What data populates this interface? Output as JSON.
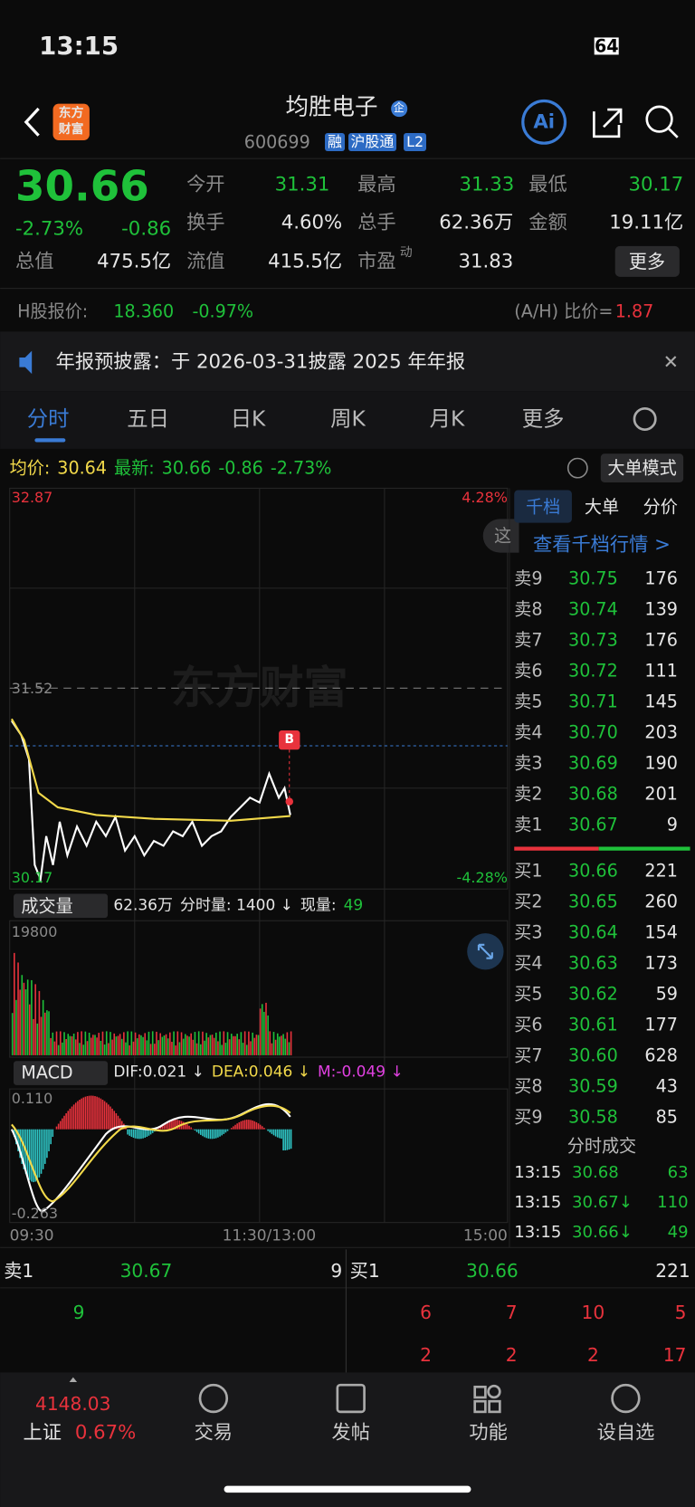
{
  "status": {
    "time": "13:15",
    "battery": "64"
  },
  "header": {
    "logo": [
      "东方",
      "财富"
    ],
    "name": "均胜电子",
    "badge": "企",
    "code": "600699",
    "tags": [
      "融",
      "沪股通",
      "L2"
    ],
    "ai": "Ai"
  },
  "quote": {
    "price": "30.66",
    "change_pct": "-2.73%",
    "change": "-0.86",
    "fields": [
      {
        "label": "今开",
        "value": "31.31"
      },
      {
        "label": "最高",
        "value": "31.33"
      },
      {
        "label": "最低",
        "value": "30.17"
      },
      {
        "label": "换手",
        "value": "4.60%"
      },
      {
        "label": "总手",
        "value": "62.36万"
      },
      {
        "label": "金额",
        "value": "19.11亿"
      },
      {
        "label": "总值",
        "value": "475.5亿"
      },
      {
        "label": "流值",
        "value": "415.5亿"
      },
      {
        "label": "市盈",
        "sup": "动",
        "value": "31.83"
      }
    ],
    "more": "更多"
  },
  "hshare": {
    "label": "H股报价:",
    "price": "18.360",
    "pct": "-0.97%",
    "ah_label": "(A/H) 比价=",
    "ah": "1.87"
  },
  "notice": "年报预披露：于 2026-03-31披露 2025 年年报",
  "tabs": [
    "分时",
    "五日",
    "日K",
    "周K",
    "月K",
    "更多"
  ],
  "info": {
    "avg_label": "均价:",
    "avg": "30.64",
    "last_label": "最新:",
    "last": "30.66",
    "change": "-0.86",
    "pct": "-2.73%",
    "mode": "大单模式"
  },
  "chart": {
    "top": "32.87",
    "top_pct": "4.28%",
    "mid": "31.52",
    "bottom": "30.17",
    "bottom_pct": "-4.28%",
    "watermark": "东方财富",
    "marker": "B",
    "hint": "这"
  },
  "volume": {
    "label": "成交量",
    "total": "62.36万",
    "period": "分时量: 1400 ↓",
    "now_label": "现量:",
    "now": "49",
    "max": "19800"
  },
  "macd": {
    "label": "MACD",
    "dif": "DIF:0.021 ↓",
    "dea": "DEA:0.046 ↓",
    "m": "M:-0.049 ↓",
    "max": "0.110",
    "min": "-0.263"
  },
  "times": [
    "09:30",
    "11:30/13:00",
    "15:00"
  ],
  "book": {
    "tabs": [
      "千档",
      "大单",
      "分价"
    ],
    "link": "查看千档行情 >",
    "sells": [
      {
        "label": "卖9",
        "price": "30.75",
        "vol": "176"
      },
      {
        "label": "卖8",
        "price": "30.74",
        "vol": "139"
      },
      {
        "label": "卖7",
        "price": "30.73",
        "vol": "176"
      },
      {
        "label": "卖6",
        "price": "30.72",
        "vol": "111"
      },
      {
        "label": "卖5",
        "price": "30.71",
        "vol": "145"
      },
      {
        "label": "卖4",
        "price": "30.70",
        "vol": "203"
      },
      {
        "label": "卖3",
        "price": "30.69",
        "vol": "190"
      },
      {
        "label": "卖2",
        "price": "30.68",
        "vol": "201"
      },
      {
        "label": "卖1",
        "price": "30.67",
        "vol": "9"
      }
    ],
    "buys": [
      {
        "label": "买1",
        "price": "30.66",
        "vol": "221"
      },
      {
        "label": "买2",
        "price": "30.65",
        "vol": "260"
      },
      {
        "label": "买3",
        "price": "30.64",
        "vol": "154"
      },
      {
        "label": "买4",
        "price": "30.63",
        "vol": "173"
      },
      {
        "label": "买5",
        "price": "30.62",
        "vol": "59"
      },
      {
        "label": "买6",
        "price": "30.61",
        "vol": "177"
      },
      {
        "label": "买7",
        "price": "30.60",
        "vol": "628"
      },
      {
        "label": "买8",
        "price": "30.59",
        "vol": "43"
      },
      {
        "label": "买9",
        "price": "30.58",
        "vol": "85"
      }
    ],
    "trades_title": "分时成交",
    "trades": [
      {
        "time": "13:15",
        "price": "30.68",
        "vol": "63"
      },
      {
        "time": "13:15",
        "price": "30.67↓",
        "vol": "110"
      },
      {
        "time": "13:15",
        "price": "30.66↓",
        "vol": "49"
      }
    ]
  },
  "queue": {
    "sell_label": "卖1",
    "sell_price": "30.67",
    "sell_vol": "9",
    "buy_label": "买1",
    "buy_price": "30.66",
    "buy_vol": "221",
    "sell_orders": [
      "9"
    ],
    "buy_orders": [
      "6",
      "7",
      "10",
      "5",
      "2",
      "2",
      "2",
      "17"
    ]
  },
  "nav": {
    "index": "4148.03",
    "index_name": "上证",
    "index_pct": "0.67%",
    "items": [
      "交易",
      "发帖",
      "功能",
      "设自选"
    ]
  }
}
